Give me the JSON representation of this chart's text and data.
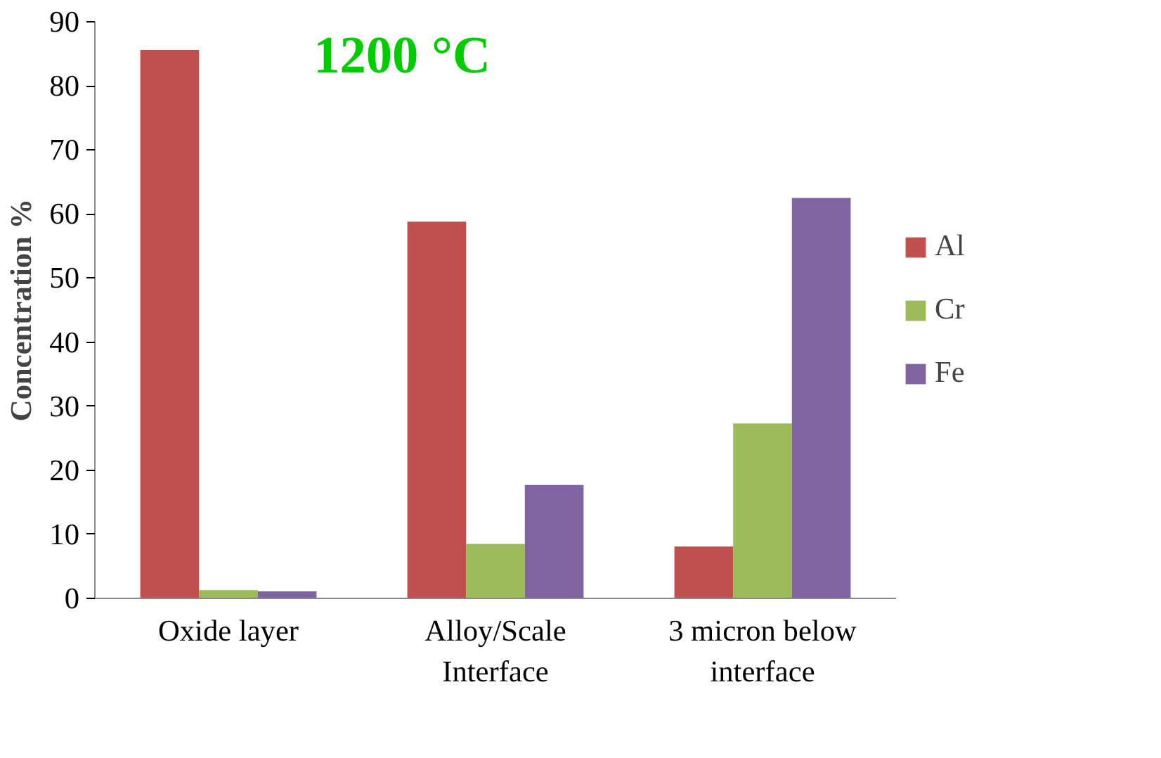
{
  "chart_data": {
    "type": "bar",
    "title": "1200 °C",
    "ylabel": "Concentration %",
    "categories": [
      "Oxide layer",
      "Alloy/Scale Interface",
      "3 micron below interface"
    ],
    "series": [
      {
        "name": "Al",
        "color": "#c0504d",
        "values": [
          85.6,
          58.8,
          8.1
        ]
      },
      {
        "name": "Cr",
        "color": "#9bbb59",
        "values": [
          1.3,
          8.5,
          27.3
        ]
      },
      {
        "name": "Fe",
        "color": "#8064a2",
        "values": [
          1.1,
          17.7,
          62.5
        ]
      }
    ],
    "ylim": [
      0,
      90
    ],
    "yticks": [
      0,
      10,
      20,
      30,
      40,
      50,
      60,
      70,
      80,
      90
    ],
    "grid": false,
    "legend": "right"
  }
}
